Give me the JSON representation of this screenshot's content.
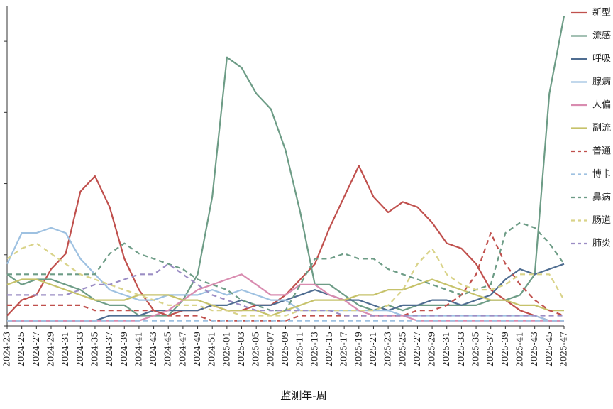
{
  "chart_data": {
    "type": "line",
    "title": "",
    "xlabel": "监测年-周",
    "ylabel": "",
    "x_tick_labels": [
      "2024-23",
      "2024-25",
      "2024-27",
      "2024-29",
      "2024-31",
      "2024-33",
      "2024-35",
      "2024-37",
      "2024-39",
      "2024-41",
      "2024-43",
      "2024-45",
      "2024-47",
      "2024-49",
      "2024-51",
      "2025-01",
      "2025-03",
      "2025-05",
      "2025-07",
      "2025-09",
      "2025-11",
      "2025-13",
      "2025-15",
      "2025-17",
      "2025-19",
      "2025-21",
      "2025-23",
      "2025-25",
      "2025-27",
      "2025-29",
      "2025-31",
      "2025-33",
      "2025-35",
      "2025-37",
      "2025-39",
      "2025-41",
      "2025-43",
      "2025-45",
      "2025-47"
    ],
    "ylim": [
      0,
      62
    ],
    "y_ticks_labeled": false,
    "grid": false,
    "legend_position": "right",
    "series": [
      {
        "name": "新型",
        "color": "#c0504d",
        "dash": false,
        "values": [
          2,
          5,
          6,
          11,
          14,
          26,
          29,
          23,
          13,
          7,
          3,
          2,
          3,
          3,
          4,
          3,
          3,
          4,
          4,
          6,
          9,
          12,
          19,
          25,
          31,
          25,
          22,
          24,
          23,
          20,
          16,
          15,
          12,
          7,
          5,
          3,
          2,
          1,
          1
        ]
      },
      {
        "name": "流感",
        "color": "#6d9c86",
        "dash": false,
        "values": [
          10,
          8,
          9,
          9,
          8,
          7,
          5,
          4,
          4,
          2,
          2,
          2,
          5,
          10,
          25,
          52,
          50,
          45,
          42,
          34,
          22,
          8,
          8,
          6,
          4,
          3,
          4,
          3,
          4,
          4,
          4,
          4,
          4,
          5,
          5,
          6,
          10,
          45,
          60
        ]
      },
      {
        "name": "呼吸",
        "color": "#4f6d91",
        "dash": false,
        "values": [
          1,
          1,
          1,
          1,
          1,
          1,
          1,
          2,
          2,
          2,
          3,
          3,
          3,
          3,
          4,
          4,
          5,
          4,
          4,
          5,
          6,
          7,
          6,
          5,
          5,
          4,
          3,
          4,
          4,
          5,
          5,
          4,
          5,
          6,
          9,
          11,
          10,
          11,
          12
        ]
      },
      {
        "name": "腺病",
        "color": "#9ec1e1",
        "dash": false,
        "values": [
          12,
          18,
          18,
          19,
          18,
          13,
          10,
          7,
          6,
          5,
          5,
          6,
          6,
          6,
          7,
          6,
          7,
          6,
          5,
          5,
          3,
          3,
          3,
          3,
          3,
          3,
          3,
          2,
          2,
          2,
          2,
          2,
          2,
          2,
          2,
          2,
          2,
          1,
          1
        ]
      },
      {
        "name": "人偏",
        "color": "#d98cb0",
        "dash": false,
        "values": [
          1,
          1,
          1,
          1,
          1,
          1,
          1,
          1,
          1,
          1,
          2,
          3,
          5,
          7,
          8,
          9,
          10,
          8,
          6,
          6,
          8,
          8,
          6,
          5,
          3,
          2,
          2,
          2,
          1,
          1,
          1,
          1,
          1,
          1,
          1,
          1,
          1,
          1,
          1
        ]
      },
      {
        "name": "副流",
        "color": "#c6c26a",
        "dash": false,
        "values": [
          8,
          9,
          9,
          8,
          7,
          6,
          5,
          5,
          5,
          6,
          6,
          6,
          5,
          5,
          4,
          3,
          3,
          3,
          2,
          3,
          4,
          5,
          5,
          5,
          6,
          6,
          7,
          7,
          8,
          9,
          8,
          7,
          6,
          5,
          5,
          4,
          4,
          3,
          3
        ]
      },
      {
        "name": "普通",
        "color": "#c0504d",
        "dash": true,
        "values": [
          4,
          4,
          4,
          4,
          4,
          4,
          3,
          3,
          3,
          3,
          3,
          2,
          2,
          2,
          1,
          1,
          1,
          1,
          1,
          1,
          2,
          2,
          2,
          2,
          2,
          2,
          2,
          2,
          3,
          3,
          4,
          6,
          10,
          18,
          12,
          8,
          5,
          3,
          2
        ]
      },
      {
        "name": "博卡",
        "color": "#9ec1e1",
        "dash": true,
        "values": [
          1,
          1,
          1,
          1,
          1,
          1,
          1,
          1,
          1,
          1,
          1,
          1,
          1,
          1,
          1,
          1,
          1,
          1,
          1,
          1,
          1,
          1,
          1,
          1,
          1,
          1,
          1,
          1,
          1,
          1,
          1,
          1,
          1,
          1,
          1,
          1,
          1,
          1,
          1
        ]
      },
      {
        "name": "鼻病",
        "color": "#6d9c86",
        "dash": true,
        "values": [
          10,
          10,
          10,
          10,
          10,
          10,
          10,
          14,
          16,
          14,
          13,
          12,
          11,
          9,
          8,
          7,
          5,
          4,
          3,
          3,
          8,
          13,
          13,
          14,
          13,
          13,
          11,
          10,
          9,
          8,
          7,
          6,
          7,
          8,
          18,
          20,
          19,
          16,
          12
        ]
      },
      {
        "name": "肠道",
        "color": "#d9d389",
        "dash": true,
        "values": [
          13,
          15,
          16,
          14,
          12,
          10,
          9,
          8,
          7,
          6,
          5,
          4,
          4,
          4,
          3,
          3,
          2,
          2,
          2,
          2,
          3,
          3,
          3,
          3,
          3,
          3,
          4,
          7,
          12,
          15,
          10,
          8,
          7,
          7,
          8,
          10,
          10,
          10,
          5
        ]
      },
      {
        "name": "肺炎",
        "color": "#9b8dc4",
        "dash": true,
        "values": [
          6,
          6,
          6,
          6,
          6,
          7,
          8,
          8,
          9,
          10,
          10,
          12,
          10,
          8,
          6,
          5,
          4,
          3,
          3,
          3,
          3,
          3,
          3,
          2,
          2,
          2,
          2,
          2,
          2,
          2,
          2,
          2,
          2,
          2,
          2,
          2,
          2,
          2,
          2
        ]
      }
    ]
  }
}
